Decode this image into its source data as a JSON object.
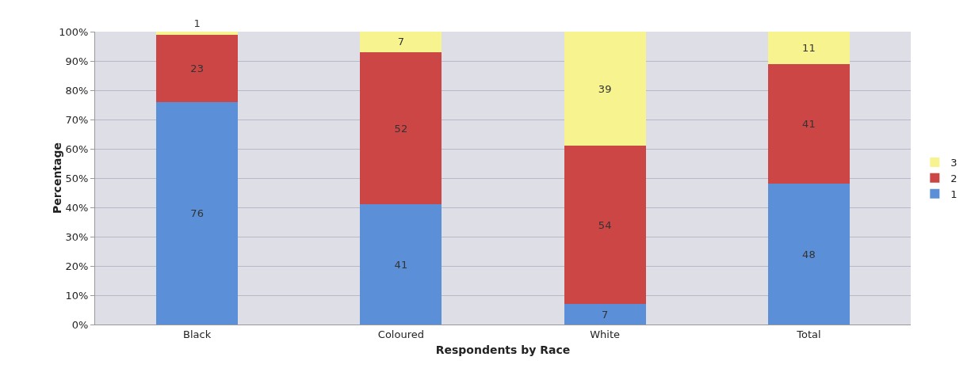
{
  "chart_data": {
    "type": "bar",
    "stacked": true,
    "xlabel": "Respondents by Race",
    "ylabel": "Percentage",
    "categories": [
      "Black",
      "Coloured",
      "White",
      "Total"
    ],
    "series": [
      {
        "name": "1",
        "color": "#5b8fd8",
        "values": [
          76,
          41,
          7,
          48
        ]
      },
      {
        "name": "2",
        "color": "#cc4646",
        "values": [
          23,
          52,
          54,
          41
        ]
      },
      {
        "name": "3",
        "color": "#f7f38e",
        "values": [
          1,
          7,
          39,
          11
        ]
      }
    ],
    "data_labels": true,
    "ylim": [
      0,
      100
    ],
    "yticks": [
      {
        "value": 0,
        "label": "0%"
      },
      {
        "value": 10,
        "label": "10%"
      },
      {
        "value": 20,
        "label": "20%"
      },
      {
        "value": 30,
        "label": "30%"
      },
      {
        "value": 40,
        "label": "40%"
      },
      {
        "value": 50,
        "label": "50%"
      },
      {
        "value": 60,
        "label": "60%"
      },
      {
        "value": 70,
        "label": "70%"
      },
      {
        "value": 80,
        "label": "80%"
      },
      {
        "value": 90,
        "label": "90%"
      },
      {
        "value": 100,
        "label": "100%"
      }
    ],
    "grid": "y",
    "legend": "right"
  }
}
